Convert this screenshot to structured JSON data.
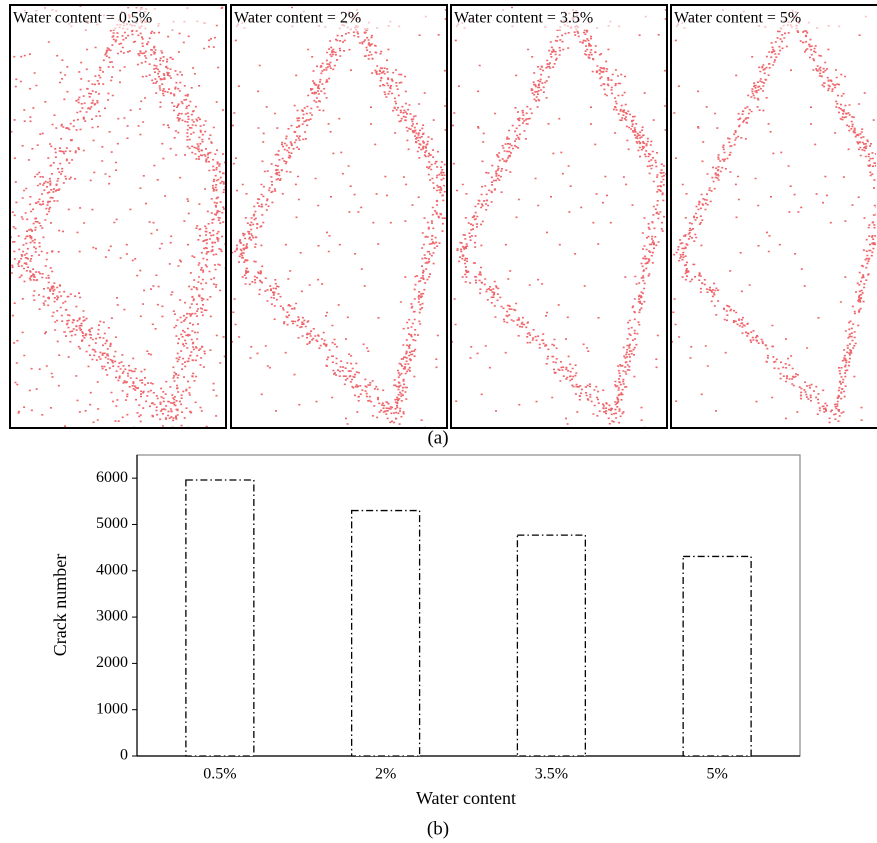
{
  "panel_a": {
    "panels": [
      {
        "label": "Water content = 0.5%"
      },
      {
        "label": "Water content = 2%"
      },
      {
        "label": "Water content = 3.5%"
      },
      {
        "label": "Water content = 5%"
      }
    ],
    "caption": "(a)"
  },
  "chart_data": {
    "type": "bar",
    "caption": "(b)",
    "x_label": "Water content",
    "y_label": "Crack number",
    "categories": [
      "0.5%",
      "2%",
      "3.5%",
      "5%"
    ],
    "values": [
      5960,
      5300,
      4770,
      4310
    ],
    "color": "#000000",
    "ylim": [
      0,
      6500
    ],
    "yticks": [
      0,
      1000,
      2000,
      3000,
      4000,
      5000,
      6000
    ],
    "grid": false
  }
}
